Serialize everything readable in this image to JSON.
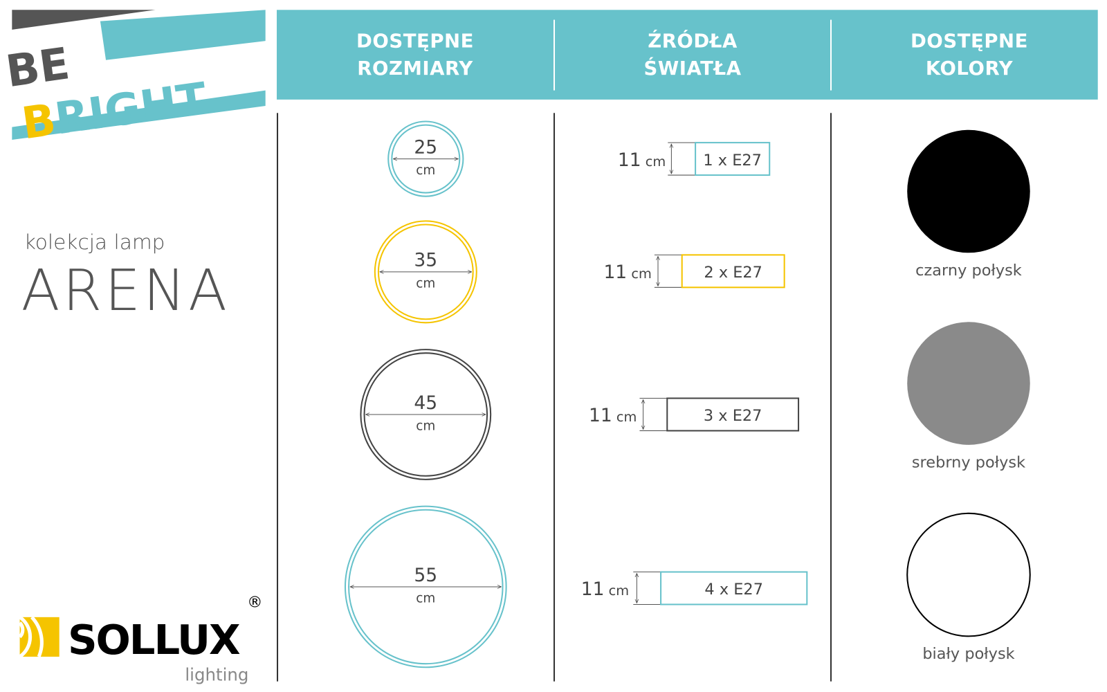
{
  "logo_top": {
    "line1": "BE",
    "line2": "BRIGHT"
  },
  "collection": {
    "prefix": "kolekcja lamp",
    "name": "ARENA"
  },
  "logo_bottom": {
    "brand": "SOLLUX",
    "sub": "lighting",
    "mark": "®"
  },
  "headers": [
    {
      "line1": "DOSTĘPNE",
      "line2": "ROZMIARY"
    },
    {
      "line1": "ŹRÓDŁA",
      "line2": "ŚWIATŁA"
    },
    {
      "line1": "DOSTĘPNE",
      "line2": "KOLORY"
    }
  ],
  "sizes": [
    {
      "value": "25",
      "unit": "cm",
      "color": "#67c2cb"
    },
    {
      "value": "35",
      "unit": "cm",
      "color": "#f5c400"
    },
    {
      "value": "45",
      "unit": "cm",
      "color": "#444444"
    },
    {
      "value": "55",
      "unit": "cm",
      "color": "#67c2cb"
    }
  ],
  "sources": [
    {
      "height": "11",
      "unit": "cm",
      "label": "1 x E27",
      "color": "#67c2cb"
    },
    {
      "height": "11",
      "unit": "cm",
      "label": "2 x E27",
      "color": "#f5c400"
    },
    {
      "height": "11",
      "unit": "cm",
      "label": "3 x E27",
      "color": "#444444"
    },
    {
      "height": "11",
      "unit": "cm",
      "label": "4 x E27",
      "color": "#67c2cb"
    }
  ],
  "colors": [
    {
      "label": "czarny połysk",
      "swatch": "#000000"
    },
    {
      "label": "srebrny połysk",
      "swatch": "#8a8a8a"
    },
    {
      "label": "biały połysk",
      "swatch": "#ffffff"
    }
  ],
  "brand_colors": {
    "teal": "#67c2cb",
    "yellow": "#f5c400",
    "dark": "#555555"
  }
}
